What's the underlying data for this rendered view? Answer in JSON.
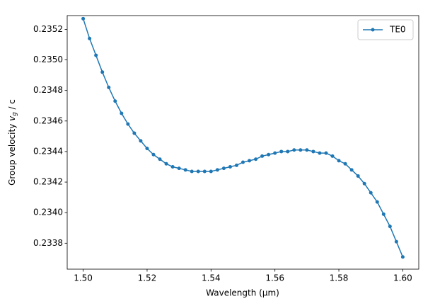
{
  "chart_data": {
    "type": "line",
    "xlabel": "Wavelength (μm)",
    "ylabel": {
      "text": "Group velocity ",
      "symbol": "v",
      "subscript": "g",
      "suffix": " / c"
    },
    "x": [
      1.5,
      1.502,
      1.504,
      1.506,
      1.508,
      1.51,
      1.512,
      1.514,
      1.516,
      1.518,
      1.52,
      1.522,
      1.524,
      1.526,
      1.528,
      1.53,
      1.532,
      1.534,
      1.536,
      1.538,
      1.54,
      1.542,
      1.544,
      1.546,
      1.548,
      1.55,
      1.552,
      1.554,
      1.556,
      1.558,
      1.56,
      1.562,
      1.564,
      1.566,
      1.568,
      1.57,
      1.572,
      1.574,
      1.576,
      1.578,
      1.58,
      1.582,
      1.584,
      1.586,
      1.588,
      1.59,
      1.592,
      1.594,
      1.596,
      1.598,
      1.6
    ],
    "series": [
      {
        "name": "TE0",
        "color": "#1f77b4",
        "values": [
          0.23527,
          0.23514,
          0.23503,
          0.23492,
          0.23482,
          0.23473,
          0.23465,
          0.23458,
          0.23452,
          0.23447,
          0.23442,
          0.23438,
          0.23435,
          0.23432,
          0.2343,
          0.23429,
          0.23428,
          0.23427,
          0.23427,
          0.23427,
          0.23427,
          0.23428,
          0.23429,
          0.2343,
          0.23431,
          0.23433,
          0.23434,
          0.23435,
          0.23437,
          0.23438,
          0.23439,
          0.2344,
          0.2344,
          0.23441,
          0.23441,
          0.23441,
          0.2344,
          0.23439,
          0.23439,
          0.23437,
          0.23434,
          0.23432,
          0.23428,
          0.23424,
          0.23419,
          0.23413,
          0.23407,
          0.23399,
          0.23391,
          0.23381,
          0.23371
        ]
      }
    ],
    "xlim": [
      1.495,
      1.605
    ],
    "ylim": [
      0.23363,
      0.23529
    ],
    "xticks": [
      {
        "value": 1.5,
        "label": "1.50"
      },
      1.52,
      1.54,
      1.56,
      1.58,
      {
        "value": 1.6,
        "label": "1.60"
      }
    ],
    "yticks": [
      0.2338,
      {
        "value": 0.234,
        "label": "0.2340"
      },
      0.2342,
      0.2344,
      0.2346,
      0.2348,
      {
        "value": 0.235,
        "label": "0.2350"
      },
      0.2352
    ],
    "legend": "upper right",
    "grid": false
  }
}
